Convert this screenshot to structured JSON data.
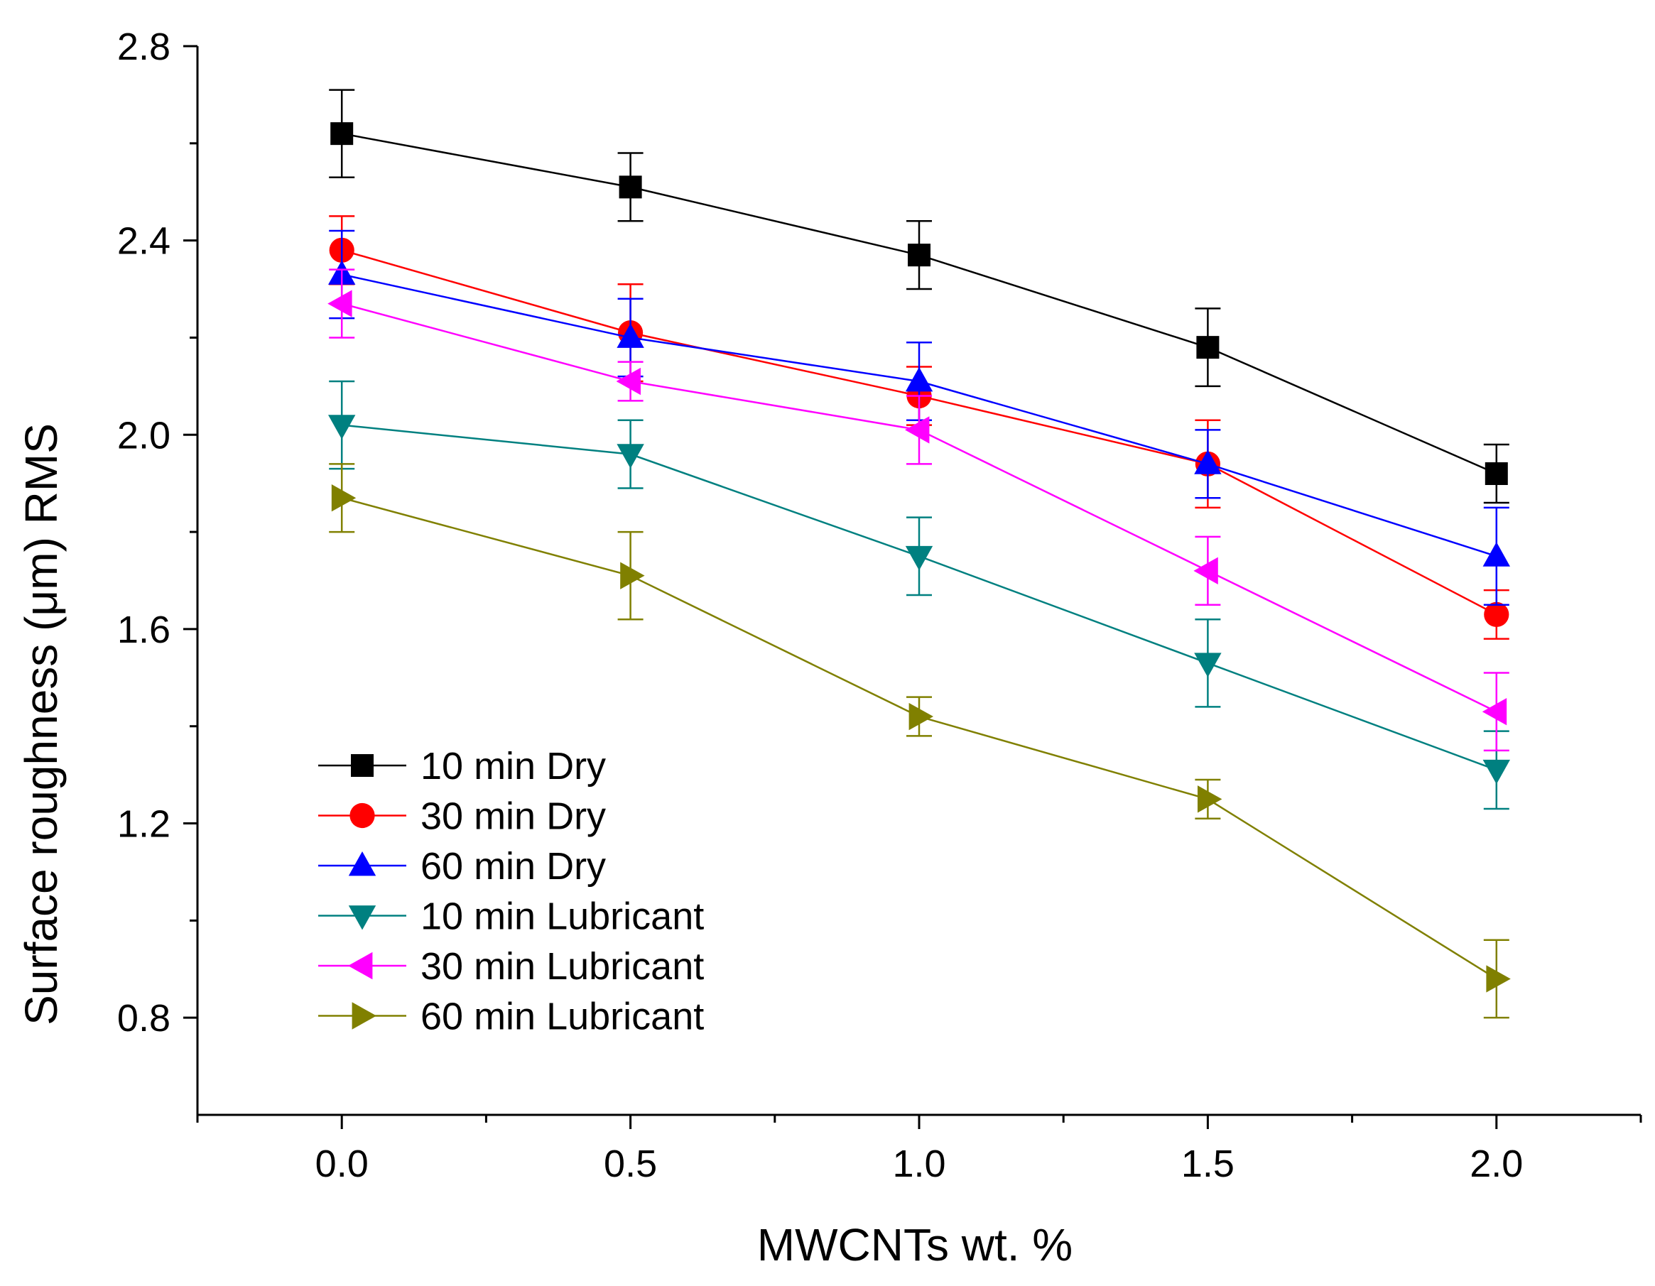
{
  "chart_data": {
    "type": "line",
    "title": "",
    "xlabel": "MWCNTs wt. %",
    "ylabel": "Surface roughness (μm) RMS",
    "xlim": [
      -0.25,
      2.25
    ],
    "ylim": [
      0.6,
      2.8
    ],
    "x_ticks": [
      0.0,
      0.5,
      1.0,
      1.5,
      2.0
    ],
    "x_tick_labels": [
      "0.0",
      "0.5",
      "1.0",
      "1.5",
      "2.0"
    ],
    "y_ticks": [
      0.8,
      1.2,
      1.6,
      2.0,
      2.4,
      2.8
    ],
    "y_tick_labels": [
      "0.8",
      "1.2",
      "1.6",
      "2.0",
      "2.4",
      "2.8"
    ],
    "grid": false,
    "legend_position": "bottom-left",
    "x": [
      0.0,
      0.5,
      1.0,
      1.5,
      2.0
    ],
    "series": [
      {
        "name": "10 min Dry",
        "color": "#000000",
        "marker": "square",
        "values": [
          2.62,
          2.51,
          2.37,
          2.18,
          1.92
        ],
        "errors": [
          0.09,
          0.07,
          0.07,
          0.08,
          0.06
        ]
      },
      {
        "name": "30 min Dry",
        "color": "#ff0000",
        "marker": "circle",
        "values": [
          2.38,
          2.21,
          2.08,
          1.94,
          1.63
        ],
        "errors": [
          0.07,
          0.1,
          0.06,
          0.09,
          0.05
        ]
      },
      {
        "name": "60 min Dry",
        "color": "#0000ff",
        "marker": "triangle-up",
        "values": [
          2.33,
          2.2,
          2.11,
          1.94,
          1.75
        ],
        "errors": [
          0.09,
          0.08,
          0.08,
          0.07,
          0.1
        ]
      },
      {
        "name": "10 min Lubricant",
        "color": "#008080",
        "marker": "triangle-down",
        "values": [
          2.02,
          1.96,
          1.75,
          1.53,
          1.31
        ],
        "errors": [
          0.09,
          0.07,
          0.08,
          0.09,
          0.08
        ]
      },
      {
        "name": "30 min Lubricant",
        "color": "#ff00ff",
        "marker": "triangle-left",
        "values": [
          2.27,
          2.11,
          2.01,
          1.72,
          1.43
        ],
        "errors": [
          0.07,
          0.04,
          0.07,
          0.07,
          0.08
        ]
      },
      {
        "name": "60 min Lubricant",
        "color": "#808000",
        "marker": "triangle-right",
        "values": [
          1.87,
          1.71,
          1.42,
          1.25,
          0.88
        ],
        "errors": [
          0.07,
          0.09,
          0.04,
          0.04,
          0.08
        ]
      }
    ]
  }
}
